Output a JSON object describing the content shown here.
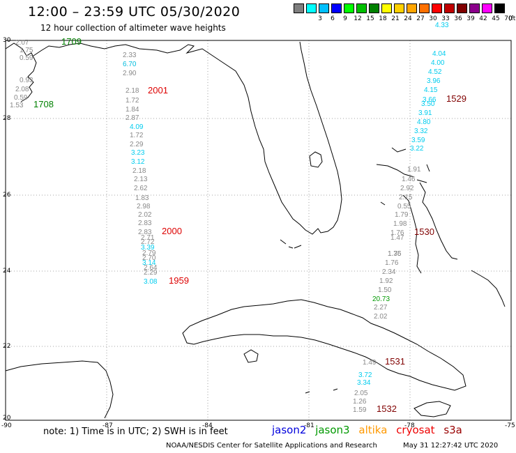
{
  "header": {
    "title": "12:00 – 23:59 UTC 05/30/2020",
    "subtitle": "12 hour collection of altimeter wave heights"
  },
  "legend": {
    "swatches": [
      {
        "color": "#7f7f7f",
        "label": ""
      },
      {
        "color": "#00ffff",
        "label": "3"
      },
      {
        "color": "#00bfff",
        "label": "6"
      },
      {
        "color": "#0000ff",
        "label": "9"
      },
      {
        "color": "#00ff00",
        "label": "12"
      },
      {
        "color": "#00c000",
        "label": "15"
      },
      {
        "color": "#008000",
        "label": "18"
      },
      {
        "color": "#ffff00",
        "label": "21"
      },
      {
        "color": "#ffd000",
        "label": "24"
      },
      {
        "color": "#ffa500",
        "label": "27"
      },
      {
        "color": "#ff7000",
        "label": "30"
      },
      {
        "color": "#ff0000",
        "label": "33"
      },
      {
        "color": "#c00000",
        "label": "36"
      },
      {
        "color": "#800000",
        "label": "39"
      },
      {
        "color": "#8b008b",
        "label": "42"
      },
      {
        "color": "#ff00ff",
        "label": "45"
      },
      {
        "color": "#000000",
        "label": "70"
      }
    ],
    "unit": "(ft)"
  },
  "axes": {
    "lat_labels": [
      "30",
      "28",
      "26",
      "24",
      "22",
      "20"
    ],
    "lon_labels": [
      "-90",
      "-87",
      "-84",
      "-81",
      "-78",
      "-75"
    ]
  },
  "tracks": [
    {
      "time": "1709",
      "time_color": "#008000",
      "values": [
        {
          "v": "2.07",
          "c": "#888888"
        },
        {
          "v": "1.75",
          "c": "#888888"
        },
        {
          "v": "0.59",
          "c": "#888888"
        },
        {
          "v": "0.93",
          "c": "#888888"
        },
        {
          "v": "2.08",
          "c": "#888888"
        },
        {
          "v": "0.59",
          "c": "#888888"
        },
        {
          "v": "1.53",
          "c": "#888888"
        }
      ]
    },
    {
      "time": "1708",
      "time_color": "#008000",
      "values": []
    },
    {
      "time": "2001",
      "time_color": "#dd0000",
      "values": [
        {
          "v": "2.33",
          "c": "#888888"
        },
        {
          "v": "6.70",
          "c": "#00bbdd"
        },
        {
          "v": "2.90",
          "c": "#888888"
        },
        {
          "v": "2.18",
          "c": "#888888"
        },
        {
          "v": "1.72",
          "c": "#888888"
        },
        {
          "v": "1.84",
          "c": "#888888"
        },
        {
          "v": "2.87",
          "c": "#888888"
        },
        {
          "v": "4.09",
          "c": "#00ccee"
        },
        {
          "v": "1.72",
          "c": "#888888"
        },
        {
          "v": "2.29",
          "c": "#888888"
        },
        {
          "v": "3.23",
          "c": "#00ccee"
        },
        {
          "v": "3.12",
          "c": "#00ccee"
        },
        {
          "v": "2.18",
          "c": "#888888"
        },
        {
          "v": "2.13",
          "c": "#888888"
        },
        {
          "v": "2.62",
          "c": "#888888"
        },
        {
          "v": "1.83",
          "c": "#888888"
        },
        {
          "v": "2.98",
          "c": "#888888"
        },
        {
          "v": "2.02",
          "c": "#888888"
        },
        {
          "v": "2.83",
          "c": "#888888"
        },
        {
          "v": "2.83",
          "c": "#888888"
        }
      ]
    },
    {
      "time": "2000",
      "time_color": "#dd0000",
      "values": [
        {
          "v": "2.71",
          "c": "#888888"
        },
        {
          "v": "2.72",
          "c": "#888888"
        },
        {
          "v": "3.39",
          "c": "#00ccee"
        },
        {
          "v": "2.79",
          "c": "#888888"
        },
        {
          "v": "2.70",
          "c": "#888888"
        },
        {
          "v": "3.14",
          "c": "#00ccee"
        },
        {
          "v": "2.64",
          "c": "#888888"
        },
        {
          "v": "2.29",
          "c": "#888888"
        },
        {
          "v": "3.08",
          "c": "#00ccee"
        }
      ]
    },
    {
      "time": "1959",
      "time_color": "#dd0000",
      "values": []
    },
    {
      "time": "1529",
      "time_color": "#800000",
      "values": [
        {
          "v": "4.33",
          "c": "#00ccee"
        },
        {
          "v": "4.04",
          "c": "#00ccee"
        },
        {
          "v": "4.00",
          "c": "#00ccee"
        },
        {
          "v": "4.52",
          "c": "#00ccee"
        },
        {
          "v": "3.96",
          "c": "#00ccee"
        },
        {
          "v": "4.15",
          "c": "#00ccee"
        },
        {
          "v": "3.66",
          "c": "#00ccee"
        },
        {
          "v": "3.50",
          "c": "#00ccee"
        },
        {
          "v": "3.91",
          "c": "#00ccee"
        },
        {
          "v": "4.80",
          "c": "#00ccee"
        },
        {
          "v": "3.32",
          "c": "#00ccee"
        },
        {
          "v": "3.59",
          "c": "#00ccee"
        },
        {
          "v": "3.22",
          "c": "#00ccee"
        }
      ]
    },
    {
      "time": "1530",
      "time_color": "#800000",
      "values": [
        {
          "v": "1.91",
          "c": "#888888"
        },
        {
          "v": "1.46",
          "c": "#888888"
        },
        {
          "v": "2.92",
          "c": "#888888"
        },
        {
          "v": "2.15",
          "c": "#888888"
        },
        {
          "v": "0.55",
          "c": "#888888"
        },
        {
          "v": "1.79",
          "c": "#888888"
        },
        {
          "v": "1.98",
          "c": "#888888"
        },
        {
          "v": "1.76",
          "c": "#888888"
        },
        {
          "v": "1.47",
          "c": "#888888"
        },
        {
          "v": "1.75",
          "c": "#888888"
        },
        {
          "v": "1.36",
          "c": "#888888"
        },
        {
          "v": "1.76",
          "c": "#888888"
        },
        {
          "v": "2.34",
          "c": "#888888"
        },
        {
          "v": "1.92",
          "c": "#888888"
        },
        {
          "v": "1.50",
          "c": "#888888"
        },
        {
          "v": "20.73",
          "c": "#009900"
        },
        {
          "v": "2.27",
          "c": "#888888"
        },
        {
          "v": "2.02",
          "c": "#888888"
        }
      ]
    },
    {
      "time": "1531",
      "time_color": "#800000",
      "values": [
        {
          "v": "1.49",
          "c": "#888888"
        },
        {
          "v": "3.72",
          "c": "#00ccee"
        },
        {
          "v": "3.34",
          "c": "#00ccee"
        },
        {
          "v": "2.05",
          "c": "#888888"
        },
        {
          "v": "1.26",
          "c": "#888888"
        },
        {
          "v": "1.59",
          "c": "#888888"
        }
      ]
    },
    {
      "time": "1532",
      "time_color": "#800000",
      "values": []
    }
  ],
  "footer": {
    "note": "note: 1) Time is in UTC; 2) SWH is in feet",
    "satellites": [
      {
        "name": "jason2",
        "color": "#0000dd"
      },
      {
        "name": "jason3",
        "color": "#009900"
      },
      {
        "name": "altika",
        "color": "#ff9900"
      },
      {
        "name": "cryosat",
        "color": "#ee0000"
      },
      {
        "name": "s3a",
        "color": "#990000"
      }
    ],
    "credit": "NOAA/NESDIS Center for Satellite Applications and Research",
    "timestamp": "May 31 12:27:42 UTC 2020"
  }
}
